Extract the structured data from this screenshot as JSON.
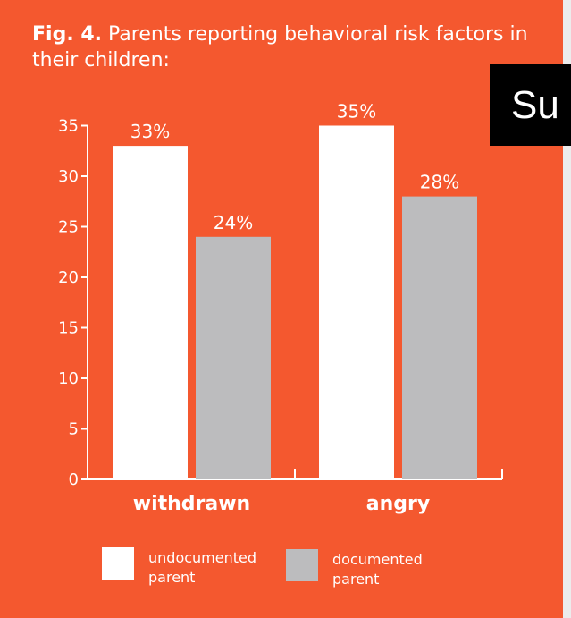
{
  "title": {
    "prefix": "Fig. 4.",
    "text": "Parents reporting behavioral risk factors in their children:"
  },
  "overlay": {
    "text": "Su"
  },
  "colors": {
    "background": "#f4582f",
    "undocumented": "#ffffff",
    "documented": "#bcbcbe",
    "text": "#ffffff",
    "overlay": "#000000"
  },
  "chart_data": {
    "type": "bar",
    "categories": [
      "withdrawn",
      "angry"
    ],
    "series": [
      {
        "name": "undocumented parent",
        "values": [
          33,
          35
        ],
        "labels": [
          "33%",
          "35%"
        ]
      },
      {
        "name": "documented parent",
        "values": [
          24,
          28
        ],
        "labels": [
          "24%",
          "28%"
        ]
      }
    ],
    "ylim": [
      0,
      35
    ],
    "yticks": [
      0,
      5,
      10,
      15,
      20,
      25,
      30,
      35
    ],
    "grid": false,
    "legend_position": "bottom"
  },
  "legend": [
    {
      "label": "undocumented\nparent"
    },
    {
      "label": "documented\nparent"
    }
  ]
}
